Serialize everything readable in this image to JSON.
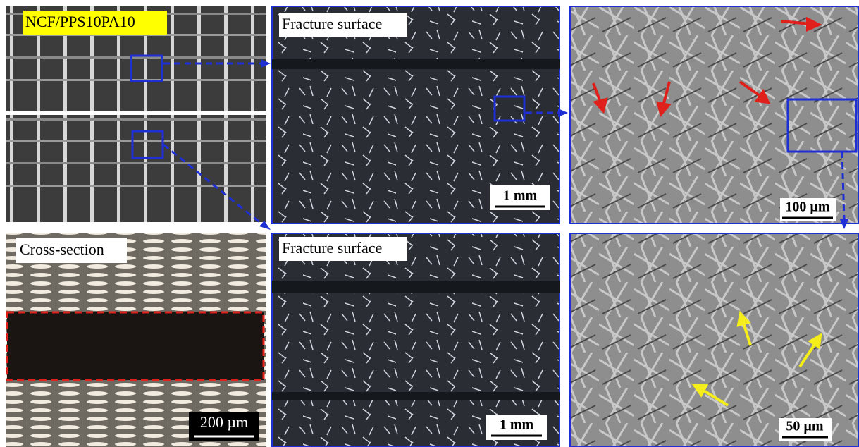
{
  "panels": [
    {
      "label": "NCF/PPS10PA10"
    },
    {
      "label": "Fracture surface",
      "scale_bar": "1 mm"
    },
    {
      "scale_bar": "100 µm"
    },
    {
      "label": "Cross-section",
      "scale_bar": "200 µm"
    },
    {
      "label": "Fracture surface",
      "scale_bar": "1 mm"
    },
    {
      "scale_bar": "50 µm"
    }
  ]
}
